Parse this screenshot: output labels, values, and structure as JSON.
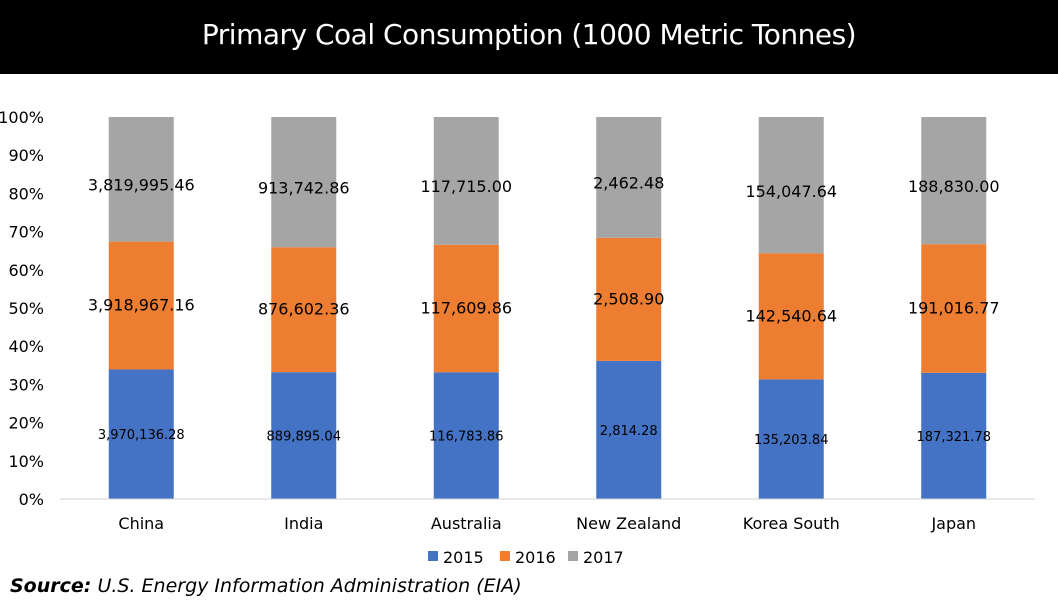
{
  "chart_data": {
    "type": "bar",
    "stacking": "percent",
    "title": "Primary Coal Consumption (1000 Metric Tonnes)",
    "categories": [
      "China",
      "India",
      "Australia",
      "New Zealand",
      "Korea South",
      "Japan"
    ],
    "series": [
      {
        "name": "2015",
        "color": "#4472C4",
        "values": [
          3970136.28,
          889895.04,
          116783.86,
          2814.28,
          135203.84,
          187321.78
        ],
        "labels": [
          "3,970,136.28",
          "889,895.04",
          "116,783.86",
          "2,814.28",
          "135,203.84",
          "187,321.78"
        ]
      },
      {
        "name": "2016",
        "color": "#ED7D31",
        "values": [
          3918967.16,
          876602.36,
          117609.86,
          2508.9,
          142540.64,
          191016.77
        ],
        "labels": [
          "3,918,967.16",
          "876,602.36",
          "117,609.86",
          "2,508.90",
          "142,540.64",
          "191,016.77"
        ]
      },
      {
        "name": "2017",
        "color": "#A5A5A5",
        "values": [
          3819995.46,
          913742.86,
          117715.0,
          2462.48,
          154047.64,
          188830.0
        ],
        "labels": [
          "3,819,995.46",
          "913,742.86",
          "117,715.00",
          "2,462.48",
          "154,047.64",
          "188,830.00"
        ]
      }
    ],
    "yticks": [
      "0%",
      "10%",
      "20%",
      "30%",
      "40%",
      "50%",
      "60%",
      "70%",
      "80%",
      "90%",
      "100%"
    ],
    "ylim": [
      0,
      100
    ],
    "grid": false,
    "legend_position": "bottom"
  },
  "source": {
    "label": "Source:",
    "text": "U.S. Energy Information Administration (EIA)"
  }
}
